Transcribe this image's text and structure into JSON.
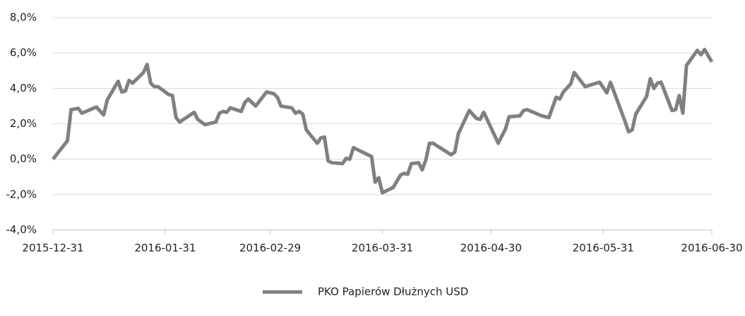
{
  "chart_data": {
    "type": "line",
    "x": [
      "2015-12-31",
      "2016-01-04",
      "2016-01-05",
      "2016-01-07",
      "2016-01-08",
      "2016-01-12",
      "2016-01-14",
      "2016-01-15",
      "2016-01-18",
      "2016-01-19",
      "2016-01-20",
      "2016-01-21",
      "2016-01-22",
      "2016-01-25",
      "2016-01-26",
      "2016-01-27",
      "2016-01-28",
      "2016-01-29",
      "2016-02-01",
      "2016-02-02",
      "2016-02-03",
      "2016-02-04",
      "2016-02-08",
      "2016-02-09",
      "2016-02-11",
      "2016-02-14",
      "2016-02-15",
      "2016-02-16",
      "2016-02-17",
      "2016-02-18",
      "2016-02-21",
      "2016-02-22",
      "2016-02-23",
      "2016-02-25",
      "2016-02-28",
      "2016-03-01",
      "2016-03-02",
      "2016-03-03",
      "2016-03-06",
      "2016-03-07",
      "2016-03-08",
      "2016-03-09",
      "2016-03-10",
      "2016-03-13",
      "2016-03-14",
      "2016-03-15",
      "2016-03-16",
      "2016-03-17",
      "2016-03-20",
      "2016-03-21",
      "2016-03-22",
      "2016-03-23",
      "2016-03-28",
      "2016-03-29",
      "2016-03-30",
      "2016-03-31",
      "2016-04-03",
      "2016-04-05",
      "2016-04-06",
      "2016-04-07",
      "2016-04-08",
      "2016-04-10",
      "2016-04-11",
      "2016-04-12",
      "2016-04-13",
      "2016-04-14",
      "2016-04-19",
      "2016-04-20",
      "2016-04-21",
      "2016-04-24",
      "2016-04-26",
      "2016-04-27",
      "2016-04-28",
      "2016-05-02",
      "2016-05-03",
      "2016-05-04",
      "2016-05-05",
      "2016-05-08",
      "2016-05-09",
      "2016-05-10",
      "2016-05-14",
      "2016-05-16",
      "2016-05-18",
      "2016-05-19",
      "2016-05-20",
      "2016-05-22",
      "2016-05-23",
      "2016-05-26",
      "2016-05-30",
      "2016-05-31",
      "2016-06-01",
      "2016-06-02",
      "2016-06-05",
      "2016-06-06",
      "2016-06-07",
      "2016-06-08",
      "2016-06-09",
      "2016-06-12",
      "2016-06-13",
      "2016-06-14",
      "2016-06-15",
      "2016-06-16",
      "2016-06-19",
      "2016-06-20",
      "2016-06-21",
      "2016-06-22",
      "2016-06-23",
      "2016-06-26",
      "2016-06-27",
      "2016-06-28",
      "2016-06-30"
    ],
    "series": [
      {
        "name": "PKO Papierów Dłużnych USD",
        "color": "#808080",
        "values": [
          0.0,
          1.04,
          2.8,
          2.87,
          2.6,
          2.95,
          2.5,
          3.35,
          4.4,
          3.8,
          3.85,
          4.45,
          4.3,
          4.9,
          5.35,
          4.3,
          4.1,
          4.1,
          3.65,
          3.6,
          2.35,
          2.1,
          2.65,
          2.25,
          1.95,
          2.1,
          2.6,
          2.7,
          2.65,
          2.9,
          2.7,
          3.2,
          3.4,
          3.0,
          3.8,
          3.7,
          3.5,
          3.0,
          2.9,
          2.6,
          2.7,
          2.55,
          1.65,
          0.9,
          1.2,
          1.25,
          -0.1,
          -0.2,
          -0.25,
          0.05,
          0.0,
          0.65,
          0.15,
          -1.3,
          -1.05,
          -1.9,
          -1.6,
          -0.9,
          -0.8,
          -0.85,
          -0.25,
          -0.2,
          -0.6,
          -0.05,
          0.9,
          0.9,
          0.25,
          0.4,
          1.45,
          2.75,
          2.3,
          2.25,
          2.65,
          0.9,
          1.3,
          1.7,
          2.4,
          2.45,
          2.75,
          2.8,
          2.45,
          2.35,
          3.5,
          3.4,
          3.8,
          4.25,
          4.9,
          4.1,
          4.35,
          4.05,
          3.75,
          4.35,
          2.7,
          2.15,
          1.55,
          1.65,
          2.55,
          3.55,
          4.55,
          4.0,
          4.3,
          4.35,
          2.75,
          2.8,
          3.6,
          2.6,
          5.3,
          6.15,
          5.9,
          6.2,
          5.5
        ]
      }
    ],
    "xlim": [
      "2015-12-31",
      "2016-06-30"
    ],
    "xticks": [
      "2015-12-31",
      "2016-01-31",
      "2016-02-29",
      "2016-03-31",
      "2016-04-30",
      "2016-05-31",
      "2016-06-30"
    ],
    "ylim": [
      -4,
      8
    ],
    "yticks": [
      {
        "value": -4,
        "label": "-4,0%"
      },
      {
        "value": -2,
        "label": "-2,0%"
      },
      {
        "value": 0,
        "label": "0,0%"
      },
      {
        "value": 2,
        "label": "2,0%"
      },
      {
        "value": 4,
        "label": "4,0%"
      },
      {
        "value": 6,
        "label": "6,0%"
      },
      {
        "value": 8,
        "label": "8,0%"
      }
    ],
    "grid": true,
    "legend": "bottom"
  }
}
